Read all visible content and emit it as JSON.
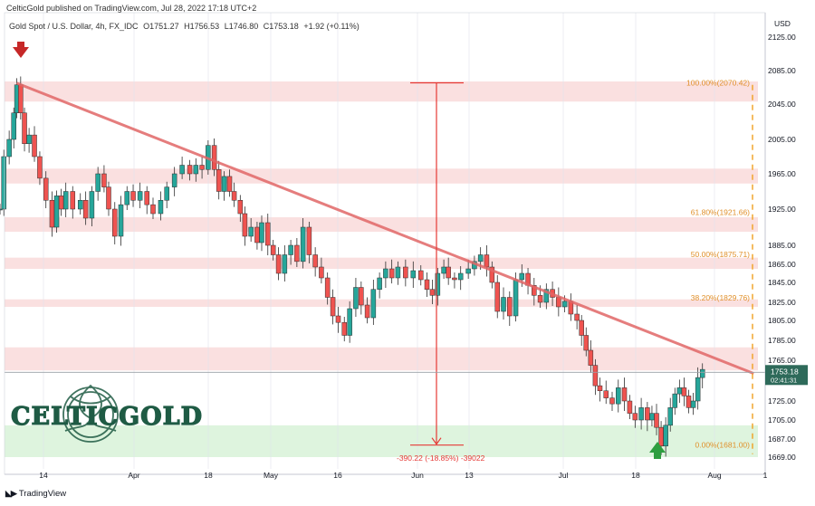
{
  "publisher_line": "CelticGold published on TradingView.com, Jul 28, 2022 17:18 UTC+2",
  "footer_brand": "TradingView",
  "logo": {
    "text": "CELTICGOLD"
  },
  "chart_data": {
    "type": "candlestick",
    "title": "Gold Spot / U.S. Dollar, 4h, FX_IDC",
    "ohlc_header": {
      "open": "O1751.27",
      "high": "H1756.53",
      "low": "L1746.80",
      "close": "C1753.18",
      "change": "+1.92 (+0.11%)"
    },
    "currency_label": "USD",
    "y_ticks": [
      "2125.00",
      "2085.00",
      "2045.00",
      "2005.00",
      "1965.00",
      "1925.00",
      "1885.00",
      "1865.00",
      "1845.00",
      "1825.00",
      "1805.00",
      "1785.00",
      "1765.00",
      "1725.00",
      "1705.00",
      "1687.00",
      "1669.00"
    ],
    "x_ticks": [
      "14",
      "Apr",
      "18",
      "May",
      "16",
      "Jun",
      "13",
      "Jul",
      "18",
      "Aug",
      "1"
    ],
    "last_price": "1753.18",
    "countdown": "02:41:31",
    "fibonacci": [
      {
        "label": "100.00%(2070.42)",
        "level": 2070.42
      },
      {
        "label": "61.80%(1921.66)",
        "level": 1921.66
      },
      {
        "label": "50.00%(1875.71)",
        "level": 1875.71
      },
      {
        "label": "38.20%(1829.76)",
        "level": 1829.76
      },
      {
        "label": "0.00%(1681.00)",
        "level": 1681.0
      }
    ],
    "measure_label": "-390.22 (-18.85%) -39022",
    "resistance_zones": [
      [
        2048,
        2072
      ],
      [
        1954,
        1971
      ],
      [
        1900,
        1916
      ],
      [
        1860,
        1872
      ],
      [
        1820,
        1828
      ],
      [
        1755,
        1778
      ]
    ],
    "support_zone": [
      1669,
      1700
    ],
    "trendline": [
      {
        "x": 0.022,
        "price": 2070
      },
      {
        "x": 0.985,
        "price": 1752
      }
    ],
    "price_path": [
      [
        0.0,
        1925
      ],
      [
        0.005,
        1985
      ],
      [
        0.012,
        2005
      ],
      [
        0.018,
        2035
      ],
      [
        0.022,
        2068
      ],
      [
        0.027,
        2035
      ],
      [
        0.032,
        2000
      ],
      [
        0.038,
        2010
      ],
      [
        0.045,
        1985
      ],
      [
        0.052,
        1960
      ],
      [
        0.06,
        1935
      ],
      [
        0.068,
        1905
      ],
      [
        0.074,
        1940
      ],
      [
        0.08,
        1925
      ],
      [
        0.086,
        1945
      ],
      [
        0.095,
        1925
      ],
      [
        0.105,
        1935
      ],
      [
        0.112,
        1915
      ],
      [
        0.12,
        1945
      ],
      [
        0.128,
        1965
      ],
      [
        0.136,
        1950
      ],
      [
        0.142,
        1925
      ],
      [
        0.15,
        1895
      ],
      [
        0.158,
        1930
      ],
      [
        0.166,
        1945
      ],
      [
        0.174,
        1935
      ],
      [
        0.183,
        1945
      ],
      [
        0.192,
        1930
      ],
      [
        0.2,
        1920
      ],
      [
        0.21,
        1935
      ],
      [
        0.218,
        1950
      ],
      [
        0.228,
        1965
      ],
      [
        0.238,
        1975
      ],
      [
        0.248,
        1965
      ],
      [
        0.256,
        1975
      ],
      [
        0.264,
        1970
      ],
      [
        0.272,
        1998
      ],
      [
        0.28,
        1970
      ],
      [
        0.286,
        1945
      ],
      [
        0.293,
        1962
      ],
      [
        0.3,
        1945
      ],
      [
        0.306,
        1935
      ],
      [
        0.314,
        1920
      ],
      [
        0.32,
        1895
      ],
      [
        0.328,
        1905
      ],
      [
        0.336,
        1888
      ],
      [
        0.342,
        1910
      ],
      [
        0.35,
        1885
      ],
      [
        0.357,
        1875
      ],
      [
        0.364,
        1855
      ],
      [
        0.372,
        1875
      ],
      [
        0.38,
        1885
      ],
      [
        0.388,
        1868
      ],
      [
        0.396,
        1905
      ],
      [
        0.404,
        1875
      ],
      [
        0.412,
        1862
      ],
      [
        0.42,
        1850
      ],
      [
        0.428,
        1830
      ],
      [
        0.435,
        1810
      ],
      [
        0.442,
        1803
      ],
      [
        0.45,
        1790
      ],
      [
        0.457,
        1818
      ],
      [
        0.465,
        1840
      ],
      [
        0.472,
        1822
      ],
      [
        0.48,
        1808
      ],
      [
        0.488,
        1838
      ],
      [
        0.496,
        1850
      ],
      [
        0.504,
        1860
      ],
      [
        0.512,
        1850
      ],
      [
        0.52,
        1862
      ],
      [
        0.53,
        1850
      ],
      [
        0.54,
        1858
      ],
      [
        0.55,
        1848
      ],
      [
        0.558,
        1838
      ],
      [
        0.565,
        1832
      ],
      [
        0.572,
        1855
      ],
      [
        0.58,
        1862
      ],
      [
        0.586,
        1850
      ],
      [
        0.594,
        1848
      ],
      [
        0.602,
        1855
      ],
      [
        0.612,
        1860
      ],
      [
        0.62,
        1868
      ],
      [
        0.628,
        1875
      ],
      [
        0.636,
        1862
      ],
      [
        0.643,
        1845
      ],
      [
        0.65,
        1815
      ],
      [
        0.658,
        1830
      ],
      [
        0.666,
        1810
      ],
      [
        0.674,
        1848
      ],
      [
        0.682,
        1855
      ],
      [
        0.69,
        1842
      ],
      [
        0.698,
        1832
      ],
      [
        0.706,
        1825
      ],
      [
        0.714,
        1838
      ],
      [
        0.722,
        1830
      ],
      [
        0.73,
        1820
      ],
      [
        0.738,
        1826
      ],
      [
        0.746,
        1812
      ],
      [
        0.754,
        1805
      ],
      [
        0.76,
        1790
      ],
      [
        0.766,
        1775
      ],
      [
        0.772,
        1760
      ],
      [
        0.778,
        1740
      ],
      [
        0.784,
        1735
      ],
      [
        0.792,
        1728
      ],
      [
        0.8,
        1722
      ],
      [
        0.808,
        1738
      ],
      [
        0.816,
        1725
      ],
      [
        0.823,
        1712
      ],
      [
        0.83,
        1705
      ],
      [
        0.838,
        1718
      ],
      [
        0.846,
        1705
      ],
      [
        0.852,
        1712
      ],
      [
        0.858,
        1698
      ],
      [
        0.864,
        1680
      ],
      [
        0.87,
        1700
      ],
      [
        0.876,
        1718
      ],
      [
        0.882,
        1732
      ],
      [
        0.888,
        1738
      ],
      [
        0.894,
        1730
      ],
      [
        0.9,
        1718
      ],
      [
        0.906,
        1725
      ],
      [
        0.912,
        1748
      ],
      [
        0.918,
        1756
      ]
    ]
  }
}
